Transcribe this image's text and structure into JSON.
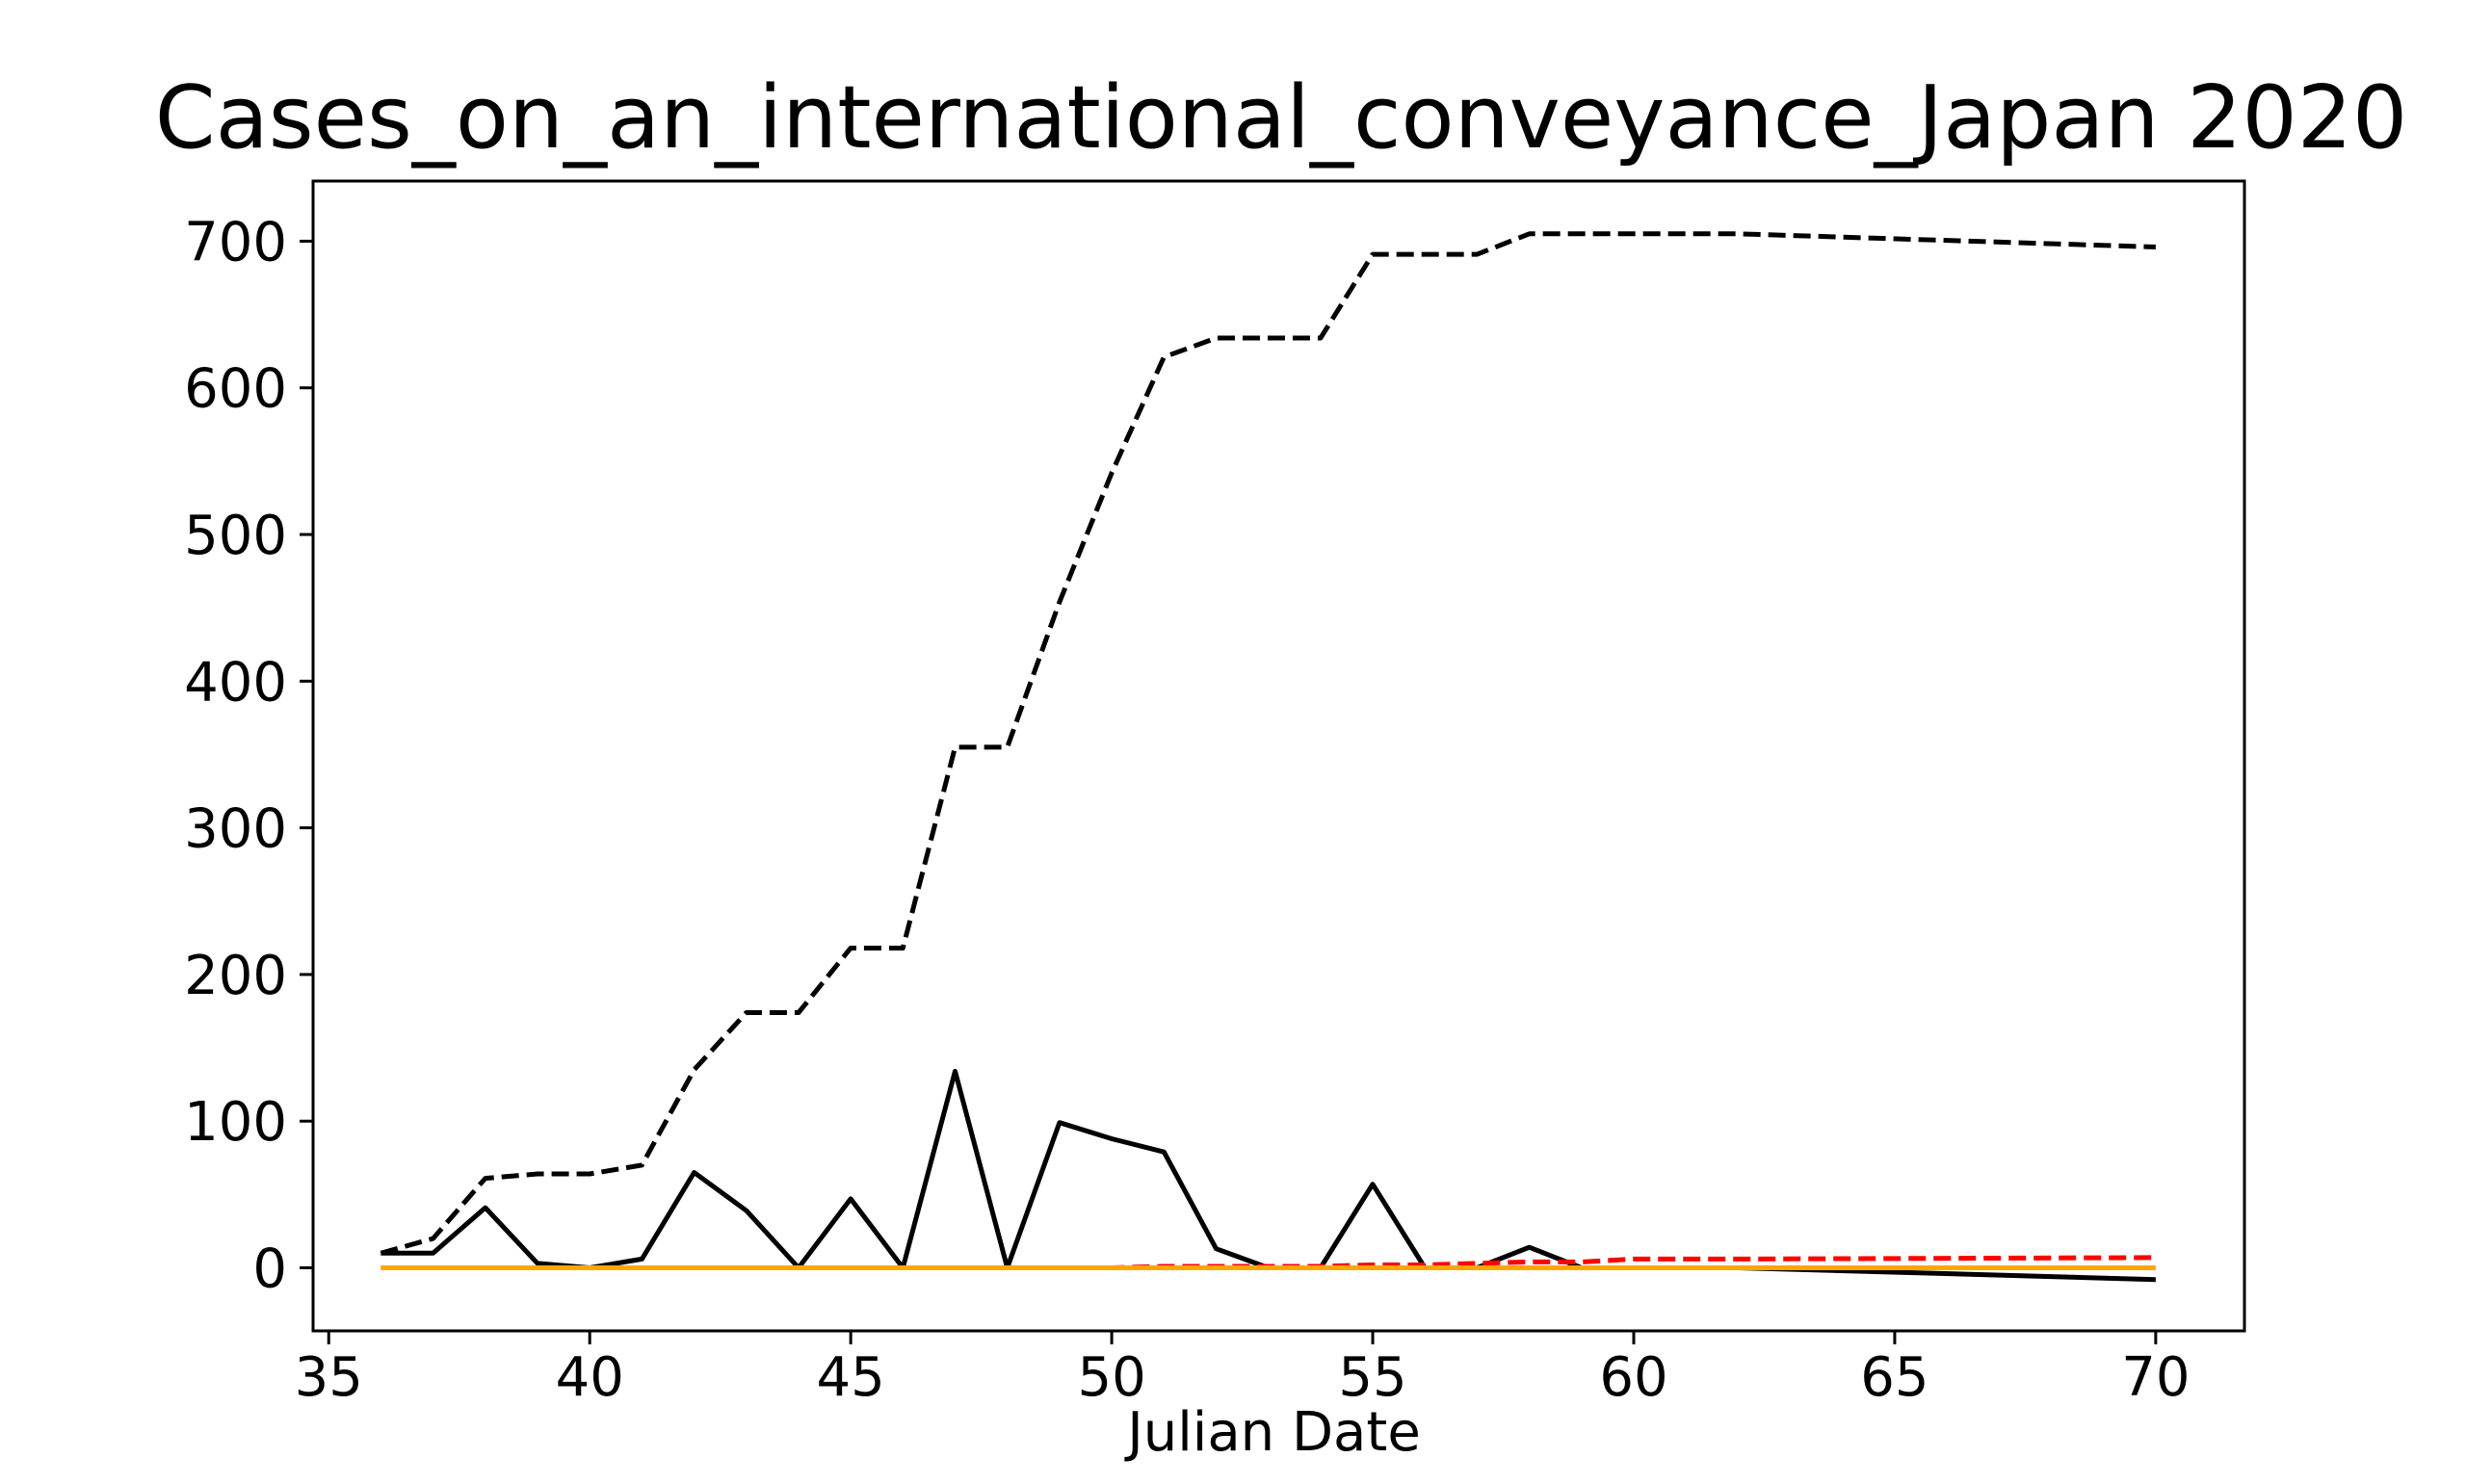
{
  "chart_data": {
    "type": "line",
    "title": "Cases_on_an_international_conveyance_Japan 2020",
    "xlabel": "Julian Date",
    "ylabel": "",
    "xlim": [
      34.7,
      71.7
    ],
    "ylim": [
      -43,
      741
    ],
    "xticks": [
      35,
      40,
      45,
      50,
      55,
      60,
      65,
      70
    ],
    "yticks": [
      0,
      100,
      200,
      300,
      400,
      500,
      600,
      700
    ],
    "x": [
      36,
      37,
      38,
      39,
      40,
      41,
      42,
      43,
      44,
      45,
      46,
      47,
      48,
      49,
      50,
      51,
      52,
      53,
      54,
      55,
      56,
      57,
      58,
      59,
      60,
      61,
      62,
      70
    ],
    "series": [
      {
        "color": "#000000",
        "style": "dashed",
        "values": [
          10,
          20,
          61,
          64,
          64,
          70,
          135,
          174,
          174,
          218,
          218,
          355,
          355,
          454,
          542,
          621,
          634,
          634,
          634,
          691,
          691,
          691,
          705,
          705,
          705,
          705,
          705,
          696
        ]
      },
      {
        "color": "#000000",
        "style": "solid",
        "values": [
          10,
          10,
          41,
          3,
          0,
          6,
          65,
          39,
          0,
          47,
          0,
          134,
          0,
          99,
          88,
          79,
          13,
          0,
          0,
          57,
          0,
          0,
          14,
          0,
          0,
          0,
          0,
          -8
        ]
      },
      {
        "color": "#ff0000",
        "style": "dashed",
        "values": [
          0,
          0,
          0,
          0,
          0,
          0,
          0,
          0,
          0,
          0,
          0,
          0,
          0,
          0,
          0,
          1,
          1,
          1,
          1,
          2,
          2,
          3,
          4,
          4,
          6,
          6,
          6,
          7
        ]
      },
      {
        "color": "#ffa500",
        "style": "solid",
        "values": [
          0,
          0,
          0,
          0,
          0,
          0,
          0,
          0,
          0,
          0,
          0,
          0,
          0,
          0,
          0,
          0,
          0,
          0,
          0,
          0,
          0,
          0,
          0,
          0,
          0,
          0,
          0,
          0
        ]
      }
    ],
    "grid": false,
    "legend": "none"
  }
}
